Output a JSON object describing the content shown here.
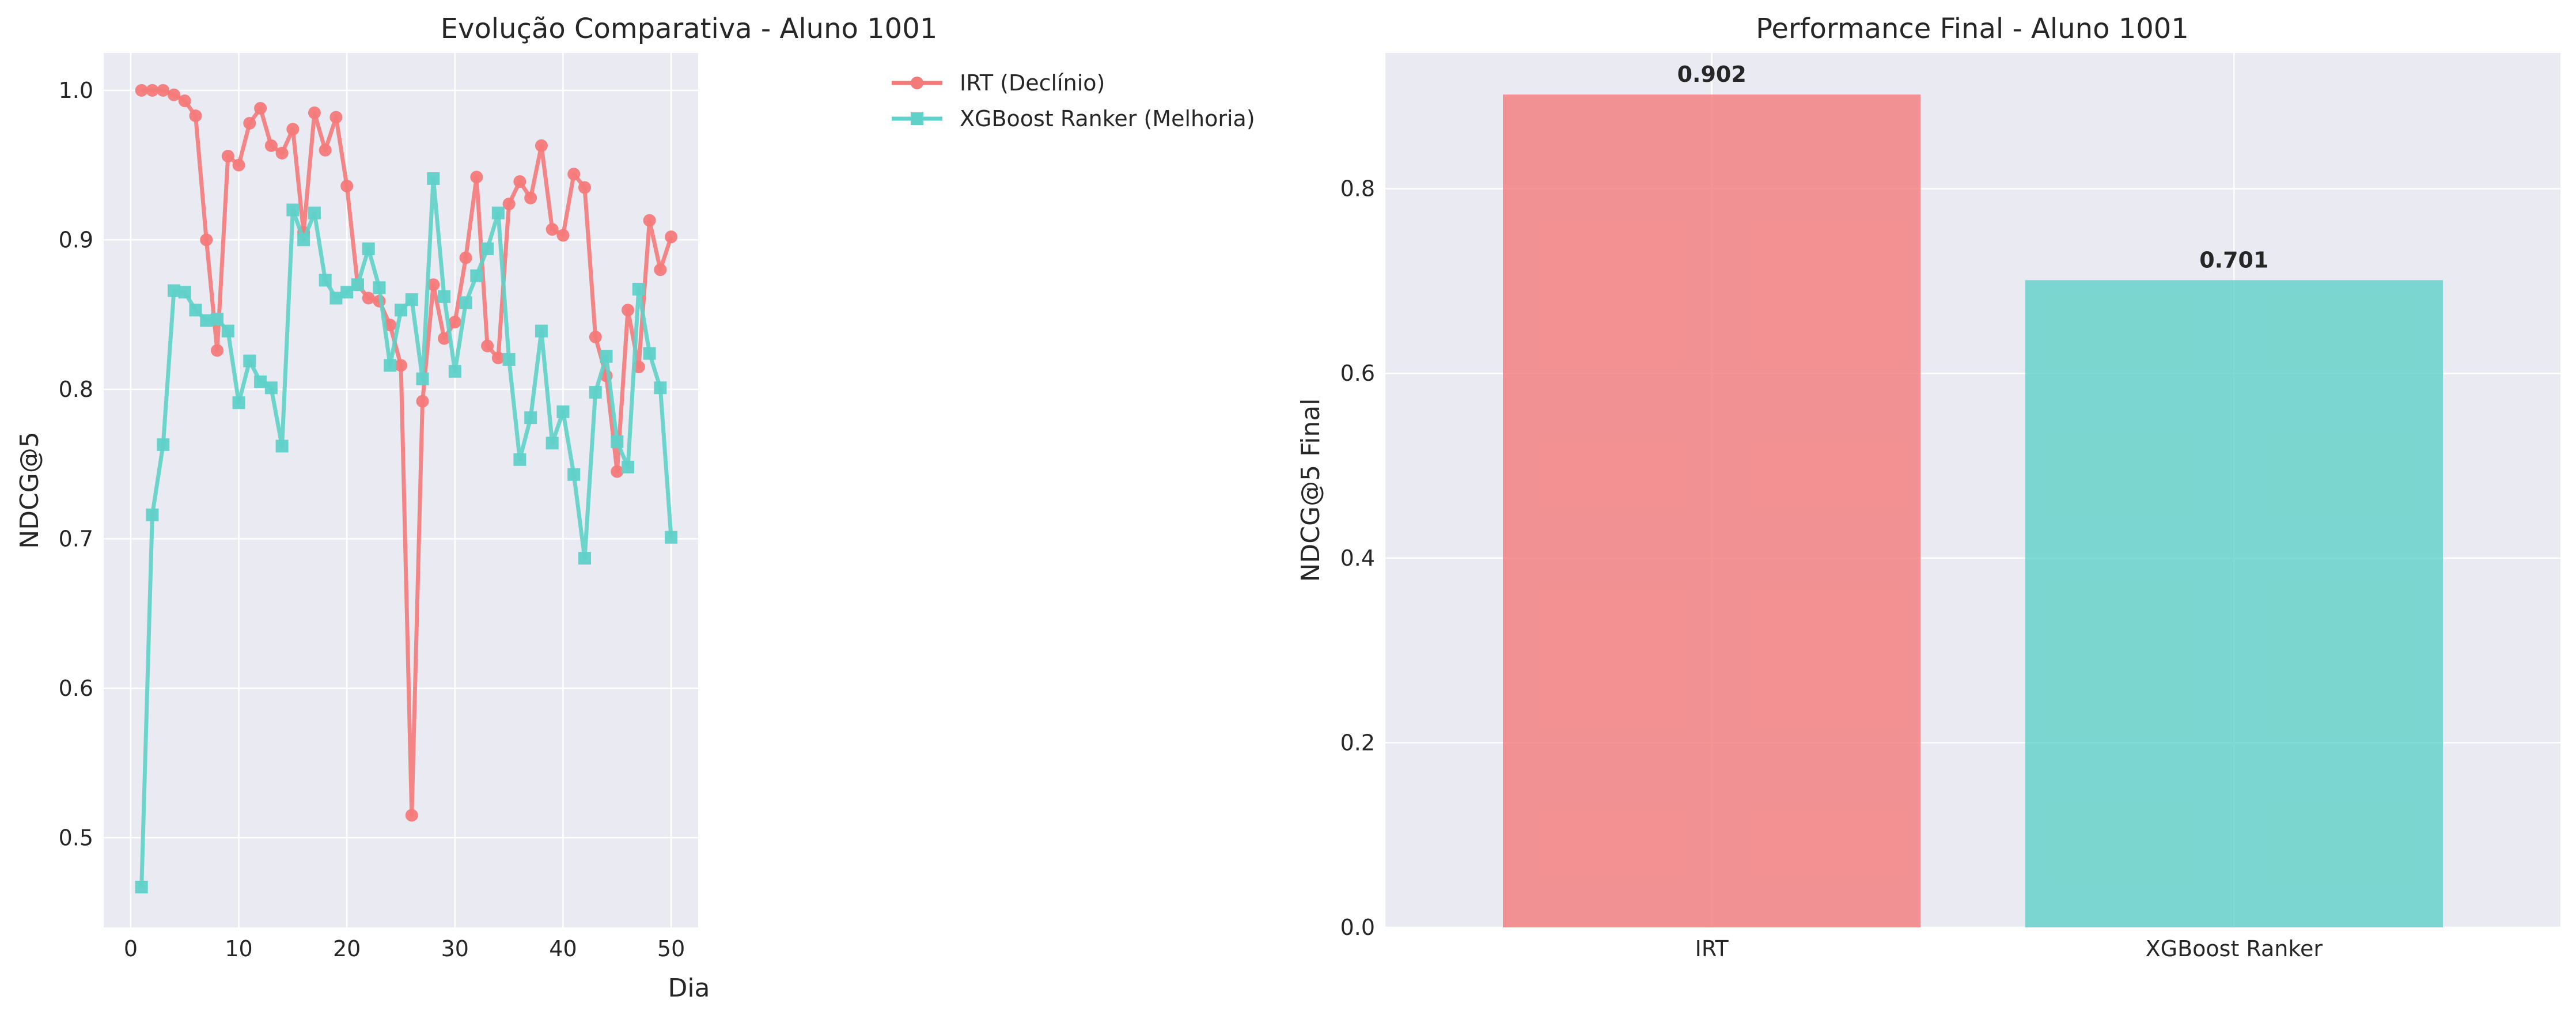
{
  "chart_data": [
    {
      "type": "line",
      "title": "Evolução Comparativa - Aluno 1001",
      "xlabel": "Dia",
      "ylabel": "NDCG@5",
      "xlim": [
        -2.5,
        52.5
      ],
      "ylim": [
        0.44,
        1.025
      ],
      "xticks": [
        0,
        10,
        20,
        30,
        40,
        50
      ],
      "yticks": [
        0.5,
        0.6,
        0.7,
        0.8,
        0.9,
        1.0
      ],
      "grid": true,
      "legend_position": "top-right",
      "x": [
        1,
        2,
        3,
        4,
        5,
        6,
        7,
        8,
        9,
        10,
        11,
        12,
        13,
        14,
        15,
        16,
        17,
        18,
        19,
        20,
        21,
        22,
        23,
        24,
        25,
        26,
        27,
        28,
        29,
        30,
        31,
        32,
        33,
        34,
        35,
        36,
        37,
        38,
        39,
        40,
        41,
        42,
        43,
        44,
        45,
        46,
        47,
        48,
        49,
        50
      ],
      "series": [
        {
          "name": "IRT (Declínio)",
          "color": "#f47a7a",
          "marker": "circle",
          "values": [
            1.0,
            1.0,
            1.0,
            0.997,
            0.993,
            0.983,
            0.9,
            0.826,
            0.956,
            0.95,
            0.978,
            0.988,
            0.963,
            0.958,
            0.974,
            0.905,
            0.985,
            0.96,
            0.982,
            0.936,
            0.87,
            0.861,
            0.859,
            0.843,
            0.816,
            0.515,
            0.792,
            0.87,
            0.834,
            0.845,
            0.888,
            0.942,
            0.829,
            0.821,
            0.924,
            0.939,
            0.928,
            0.963,
            0.907,
            0.903,
            0.944,
            0.935,
            0.835,
            0.809,
            0.745,
            0.853,
            0.815,
            0.913,
            0.88,
            0.902
          ]
        },
        {
          "name": "XGBoost Ranker (Melhoria)",
          "color": "#5fd1c8",
          "marker": "square",
          "values": [
            0.467,
            0.716,
            0.763,
            0.866,
            0.865,
            0.853,
            0.846,
            0.847,
            0.839,
            0.791,
            0.819,
            0.805,
            0.801,
            0.762,
            0.92,
            0.9,
            0.918,
            0.873,
            0.861,
            0.865,
            0.87,
            0.894,
            0.868,
            0.816,
            0.853,
            0.86,
            0.807,
            0.941,
            0.862,
            0.812,
            0.858,
            0.876,
            0.894,
            0.918,
            0.82,
            0.753,
            0.781,
            0.839,
            0.764,
            0.785,
            0.743,
            0.687,
            0.798,
            0.822,
            0.765,
            0.748,
            0.867,
            0.824,
            0.801,
            0.701
          ]
        }
      ]
    },
    {
      "type": "bar",
      "title": "Performance Final - Aluno 1001",
      "xlabel": "",
      "ylabel": "NDCG@5 Final",
      "categories": [
        "IRT",
        "XGBoost Ranker"
      ],
      "values": [
        0.902,
        0.701
      ],
      "value_labels": [
        "0.902",
        "0.701"
      ],
      "colors": [
        "#f47a7a",
        "#5fd1c8"
      ],
      "ylim": [
        0,
        0.947
      ],
      "yticks": [
        0.0,
        0.2,
        0.4,
        0.6,
        0.8
      ],
      "ytick_labels": [
        "0.0",
        "0.2",
        "0.4",
        "0.6",
        "0.8"
      ],
      "grid": true
    }
  ]
}
